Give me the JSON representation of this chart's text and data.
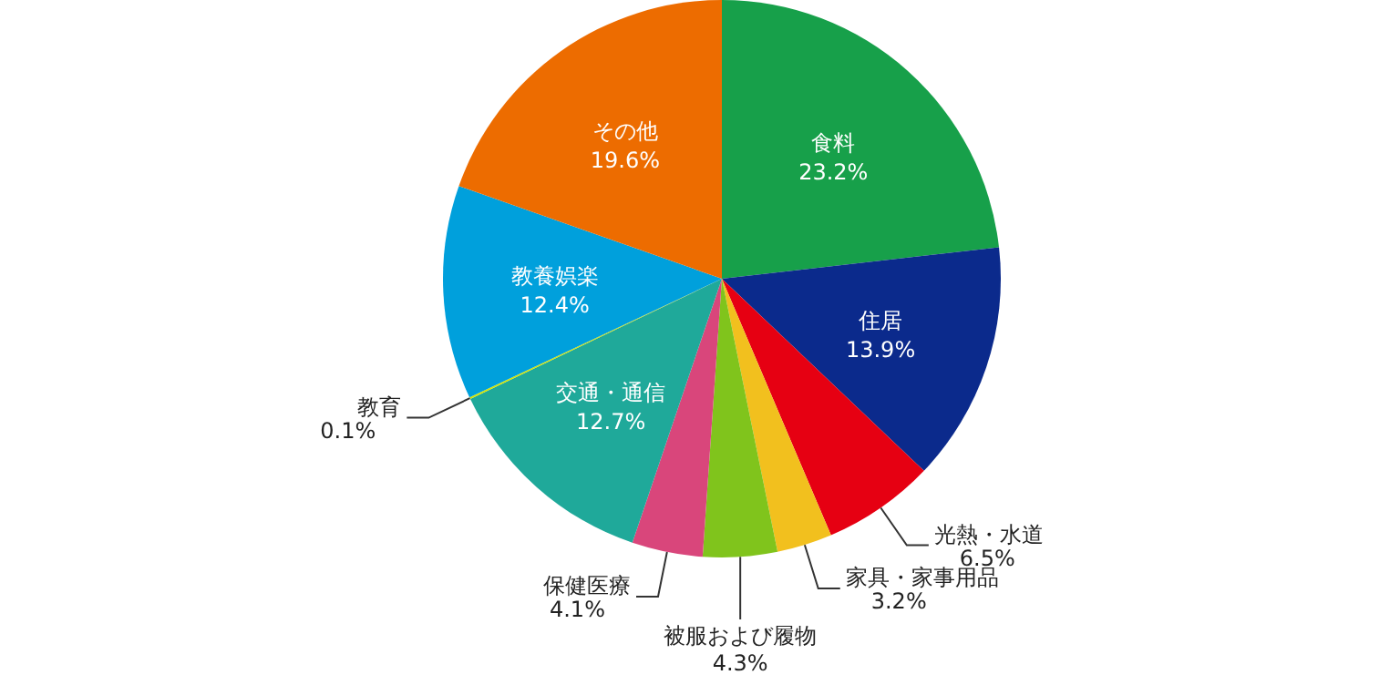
{
  "chart_data": {
    "type": "pie",
    "categories": [
      "食料",
      "住居",
      "光熱・水道",
      "家具・家事用品",
      "被服および履物",
      "保健医療",
      "交通・通信",
      "教育",
      "教養娯楽",
      "その他"
    ],
    "values": [
      23.2,
      13.9,
      6.5,
      3.2,
      4.3,
      4.1,
      12.7,
      0.1,
      12.4,
      19.6
    ],
    "value_labels": [
      "23.2%",
      "13.9%",
      "6.5%",
      "3.2%",
      "4.3%",
      "4.1%",
      "12.7%",
      "0.1%",
      "12.4%",
      "19.6%"
    ],
    "colors": [
      "#17a04a",
      "#0b2a8c",
      "#e60012",
      "#f2c01e",
      "#80c41c",
      "#d9467b",
      "#1fa99a",
      "#d4e600",
      "#00a0dc",
      "#ed6c00"
    ]
  }
}
